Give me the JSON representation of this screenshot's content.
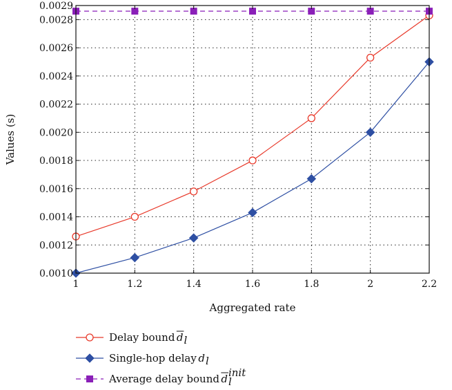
{
  "chart_data": {
    "type": "line",
    "xlabel": "Aggregated rate",
    "ylabel": "Values (s)",
    "xlim": [
      1,
      2.2
    ],
    "ylim": [
      0.001,
      0.0029
    ],
    "x_ticks": [
      "1",
      "1.2",
      "1.4",
      "1.6",
      "1.8",
      "2",
      "2.2"
    ],
    "y_ticks": [
      "0.0010",
      "0.0012",
      "0.0014",
      "0.0016",
      "0.0018",
      "0.0020",
      "0.0022",
      "0.0024",
      "0.0026",
      "0.0028",
      "0.0029"
    ],
    "grid": true,
    "legend_position": "bottom",
    "x": [
      1,
      1.2,
      1.4,
      1.6,
      1.8,
      2,
      2.2
    ],
    "series": [
      {
        "name": "Delay bound d̄l",
        "legend_text": "Delay bound",
        "legend_sym": "d",
        "legend_sub": "l",
        "legend_sup": "",
        "legend_overbar": true,
        "color": "#e8392a",
        "marker": "circle-open",
        "dash": false,
        "values": [
          0.00126,
          0.0014,
          0.00158,
          0.0018,
          0.0021,
          0.00253,
          0.00283
        ]
      },
      {
        "name": "Single-hop delay dl",
        "legend_text": "Single-hop delay",
        "legend_sym": "d",
        "legend_sub": "l",
        "legend_sup": "",
        "legend_overbar": false,
        "color": "#2e4fa3",
        "marker": "diamond",
        "dash": false,
        "values": [
          0.001,
          0.00111,
          0.00125,
          0.00143,
          0.00167,
          0.002,
          0.0025
        ]
      },
      {
        "name": "Average delay bound d̄l init",
        "legend_text": "Average delay bound",
        "legend_sym": "d",
        "legend_sub": "l",
        "legend_sup": "init",
        "legend_overbar": true,
        "color": "#8a1fb8",
        "marker": "square",
        "dash": true,
        "values": [
          0.00286,
          0.00286,
          0.00286,
          0.00286,
          0.00286,
          0.00286,
          0.00286
        ]
      }
    ]
  }
}
